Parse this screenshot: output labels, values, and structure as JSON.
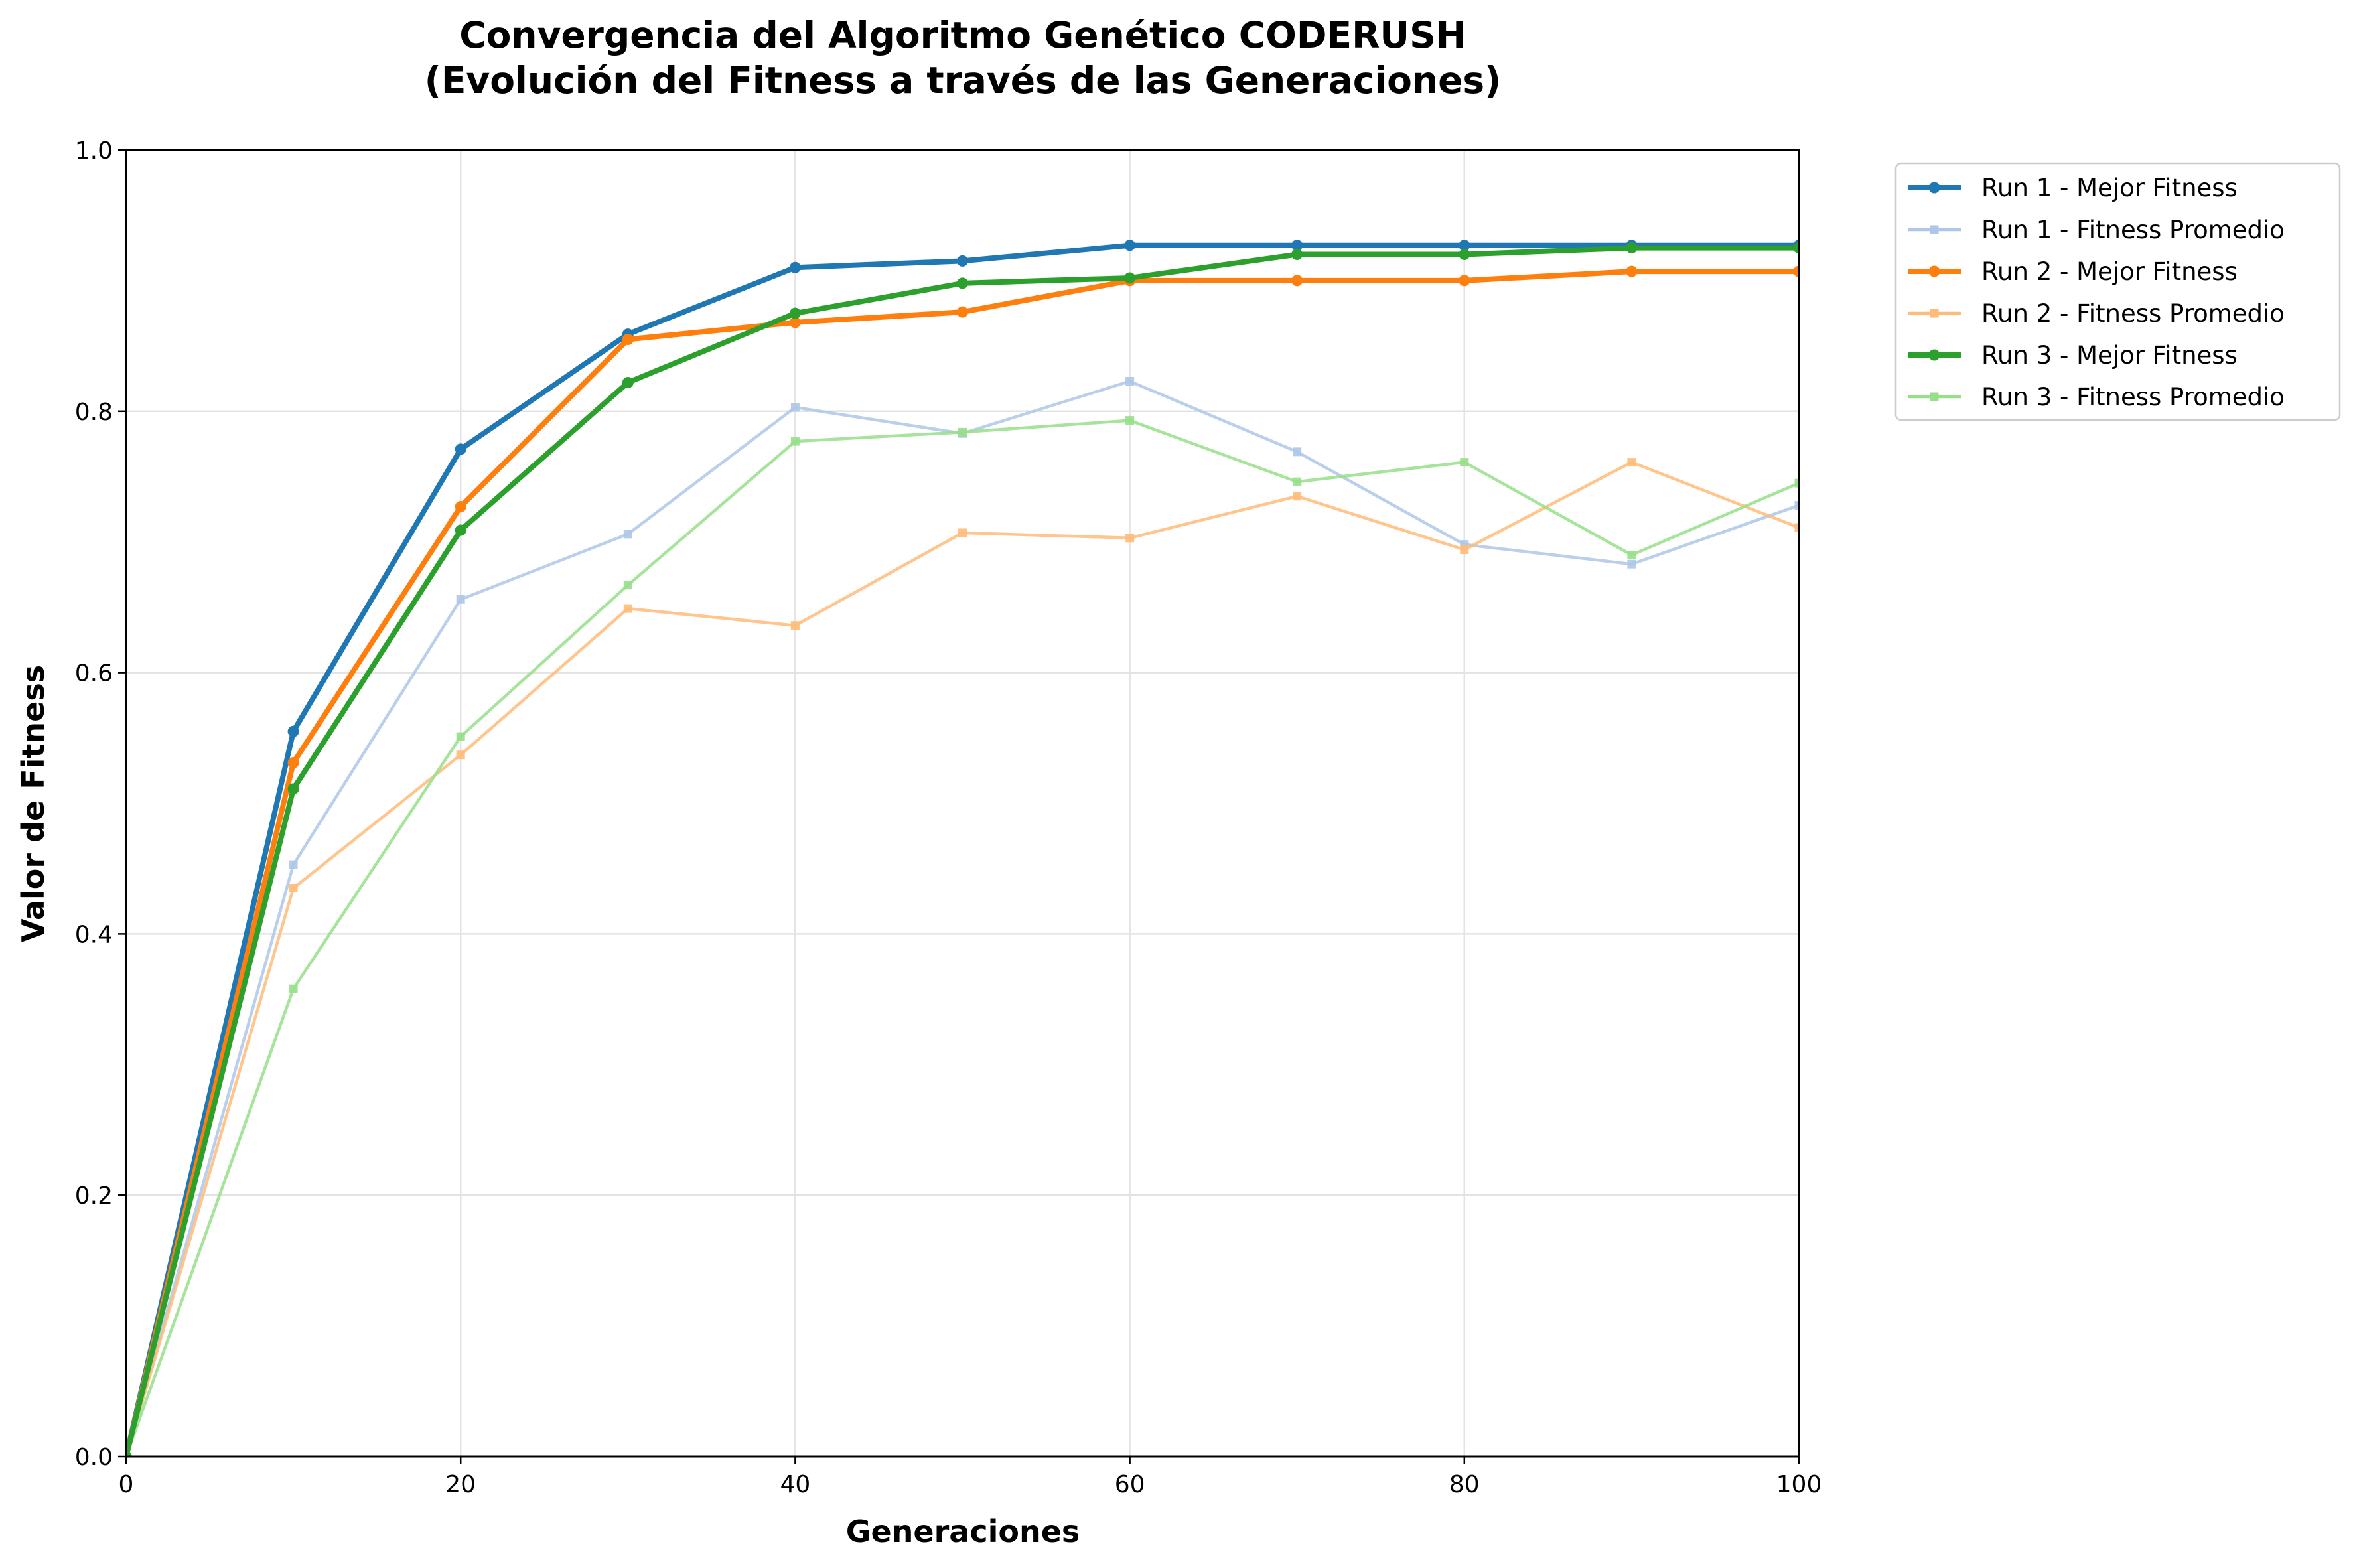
{
  "chart_data": {
    "type": "line",
    "title": "Convergencia del Algoritmo Genético CODERUSH",
    "subtitle": "(Evolución del Fitness a través de las Generaciones)",
    "xlabel": "Generaciones",
    "ylabel": "Valor de Fitness",
    "xlim": [
      0,
      100
    ],
    "ylim": [
      0,
      1.0
    ],
    "x_ticks": [
      "0",
      "20",
      "40",
      "60",
      "80",
      "100"
    ],
    "y_ticks": [
      "0.0",
      "0.2",
      "0.4",
      "0.6",
      "0.8",
      "1.0"
    ],
    "grid": true,
    "legend_position": "outside-top-right",
    "x": [
      0,
      10,
      20,
      30,
      40,
      50,
      60,
      70,
      80,
      90,
      100
    ],
    "series": [
      {
        "name": "Run 1 - Mejor Fitness",
        "color": "#1f77b4",
        "style": "best",
        "marker": "circle",
        "values": [
          0.0,
          0.555,
          0.771,
          0.859,
          0.91,
          0.915,
          0.927,
          0.927,
          0.927,
          0.927,
          0.927
        ]
      },
      {
        "name": "Run 1 - Fitness Promedio",
        "color": "#aec7e8",
        "style": "avg",
        "marker": "square",
        "values": [
          0.0,
          0.453,
          0.656,
          0.706,
          0.803,
          0.783,
          0.823,
          0.769,
          0.698,
          0.683,
          0.728
        ]
      },
      {
        "name": "Run 2 - Mejor Fitness",
        "color": "#ff7f0e",
        "style": "best",
        "marker": "circle",
        "values": [
          0.0,
          0.531,
          0.727,
          0.855,
          0.868,
          0.876,
          0.9,
          0.9,
          0.9,
          0.907,
          0.907
        ]
      },
      {
        "name": "Run 2 - Fitness Promedio",
        "color": "#ffbb78",
        "style": "avg",
        "marker": "square",
        "values": [
          0.0,
          0.435,
          0.537,
          0.649,
          0.636,
          0.707,
          0.703,
          0.735,
          0.694,
          0.761,
          0.711
        ]
      },
      {
        "name": "Run 3 - Mejor Fitness",
        "color": "#2ca02c",
        "style": "best",
        "marker": "circle",
        "values": [
          0.0,
          0.511,
          0.709,
          0.822,
          0.875,
          0.898,
          0.902,
          0.92,
          0.92,
          0.925,
          0.925
        ]
      },
      {
        "name": "Run 3 - Fitness Promedio",
        "color": "#98df8a",
        "style": "avg",
        "marker": "square",
        "values": [
          0.0,
          0.358,
          0.551,
          0.667,
          0.777,
          0.784,
          0.793,
          0.746,
          0.761,
          0.69,
          0.745
        ]
      }
    ]
  }
}
